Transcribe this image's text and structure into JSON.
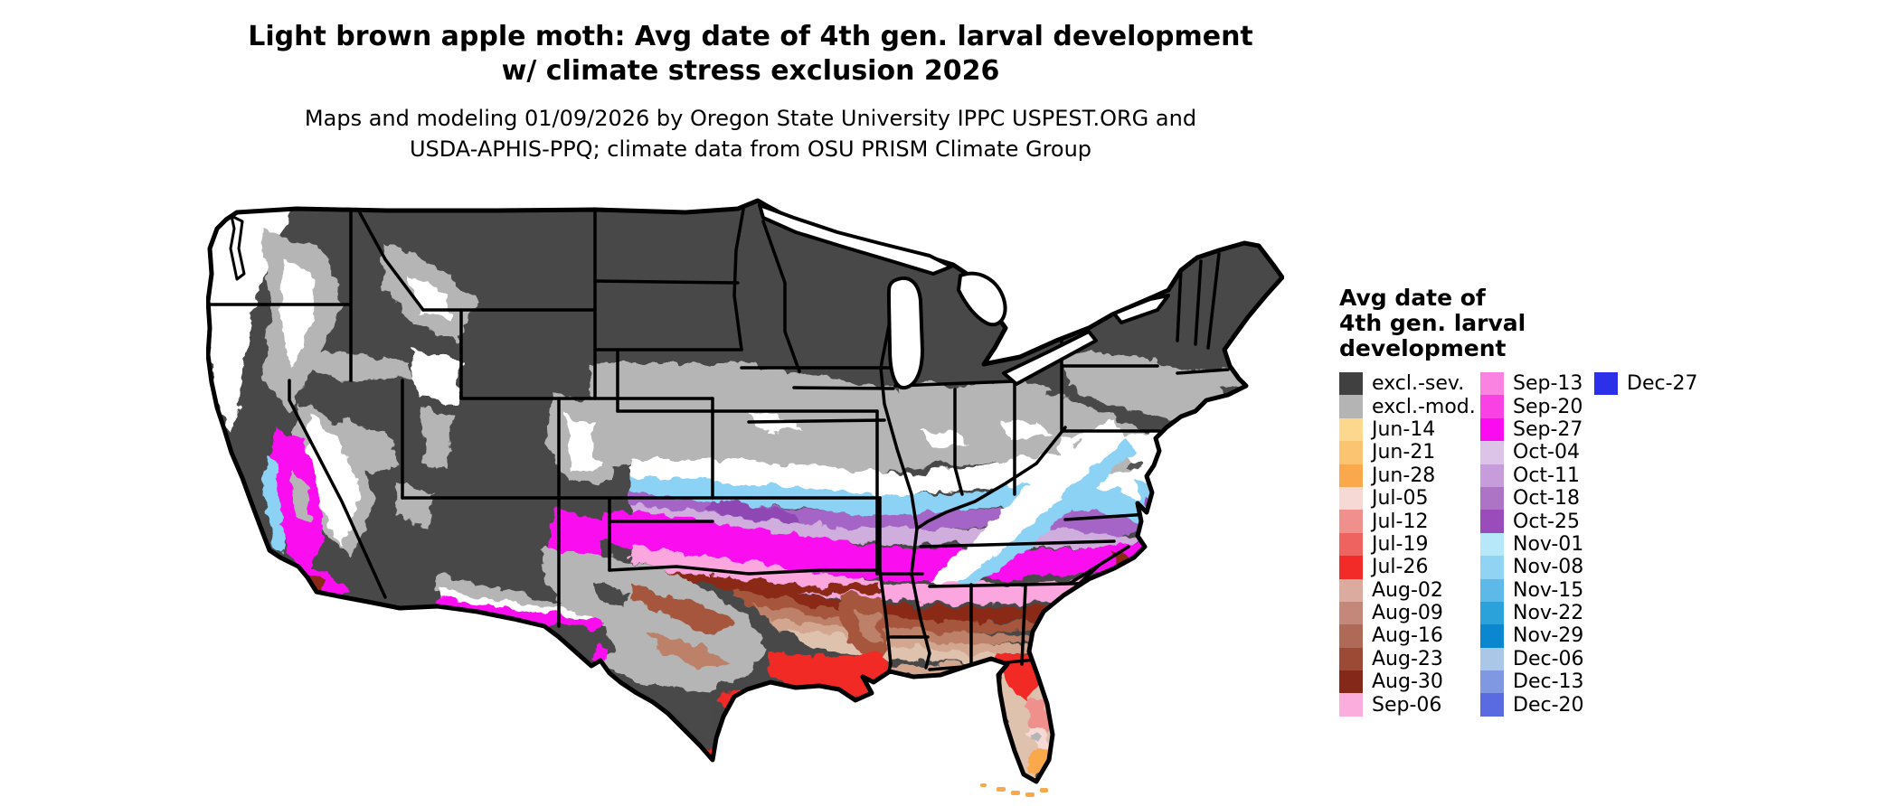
{
  "header": {
    "title_line1": "Light brown apple moth: Avg date of 4th gen. larval development",
    "title_line2": "w/ climate stress exclusion 2026",
    "subtitle_line1": "Maps and modeling 01/09/2026 by Oregon State University IPPC USPEST.ORG and",
    "subtitle_line2": "USDA-APHIS-PPQ; climate data from OSU PRISM Climate Group"
  },
  "legend": {
    "title_lines": [
      "Avg date of",
      "4th gen. larval",
      "development"
    ],
    "columns": [
      {
        "entries": [
          {
            "label": "excl.-sev.",
            "color": "#404040"
          },
          {
            "label": "excl.-mod.",
            "color": "#b4b4b4"
          },
          {
            "label": "Jun-14",
            "color": "#fcd88e"
          },
          {
            "label": "Jun-21",
            "color": "#fbc470"
          },
          {
            "label": "Jun-28",
            "color": "#f9a94c"
          },
          {
            "label": "Jul-05",
            "color": "#f6d8d4"
          },
          {
            "label": "Jul-12",
            "color": "#f0908c"
          },
          {
            "label": "Jul-19",
            "color": "#ee6260"
          },
          {
            "label": "Jul-26",
            "color": "#f22b28"
          },
          {
            "label": "Aug-02",
            "color": "#dcaba0"
          },
          {
            "label": "Aug-09",
            "color": "#c4887a"
          },
          {
            "label": "Aug-16",
            "color": "#ae6a57"
          },
          {
            "label": "Aug-23",
            "color": "#9c4936"
          },
          {
            "label": "Aug-30",
            "color": "#84281a"
          },
          {
            "label": "Sep-06",
            "color": "#fbaede"
          }
        ]
      },
      {
        "entries": [
          {
            "label": "Sep-13",
            "color": "#fa82e0"
          },
          {
            "label": "Sep-20",
            "color": "#fa41e4"
          },
          {
            "label": "Sep-27",
            "color": "#fb0cf0"
          },
          {
            "label": "Oct-04",
            "color": "#dcc3e8"
          },
          {
            "label": "Oct-11",
            "color": "#c69cda"
          },
          {
            "label": "Oct-18",
            "color": "#ad74c6"
          },
          {
            "label": "Oct-25",
            "color": "#9a4cba"
          },
          {
            "label": "Nov-01",
            "color": "#b6e8fa"
          },
          {
            "label": "Nov-08",
            "color": "#90d3f2"
          },
          {
            "label": "Nov-15",
            "color": "#5db9e8"
          },
          {
            "label": "Nov-22",
            "color": "#2ba2da"
          },
          {
            "label": "Nov-29",
            "color": "#0a87ce"
          },
          {
            "label": "Dec-06",
            "color": "#aac7e8"
          },
          {
            "label": "Dec-13",
            "color": "#8097e2"
          },
          {
            "label": "Dec-20",
            "color": "#5a6be2"
          }
        ]
      },
      {
        "entries": [
          {
            "label": "Dec-27",
            "color": "#2c30e8"
          }
        ]
      }
    ]
  },
  "map": {
    "region": "Contiguous United States",
    "outline_color": "#000000",
    "water_background": "#ffffff",
    "excluded_severe_color": "#484848",
    "excluded_moderate_color": "#b5b5b5"
  }
}
